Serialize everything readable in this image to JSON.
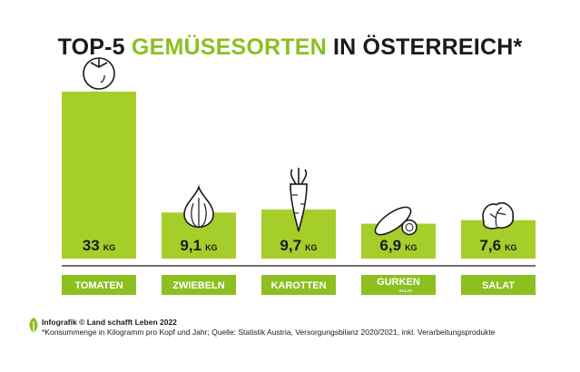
{
  "title": {
    "part1": "TOP-5",
    "part2": "GEMÜSESORTEN",
    "part3": "IN ÖSTERREICH*"
  },
  "colors": {
    "bar": "#a6ce2b",
    "label_bg": "#8cbf1f",
    "text_dark": "#1a1a1a",
    "label_text": "#ffffff"
  },
  "chart_data": {
    "type": "bar",
    "categories": [
      "TOMATEN",
      "ZWIEBELN",
      "KAROTTEN",
      "GURKEN",
      "SALAT"
    ],
    "category_sublabels": [
      "",
      "",
      "",
      "SALAT",
      ""
    ],
    "values": [
      33,
      9.1,
      9.7,
      6.9,
      7.6
    ],
    "value_labels": [
      "33",
      "9,1",
      "9,7",
      "6,9",
      "7,6"
    ],
    "unit": "KG",
    "icons": [
      "tomato-icon",
      "onion-icon",
      "carrot-icon",
      "cucumber-icon",
      "lettuce-icon"
    ],
    "ylim": [
      0,
      33
    ]
  },
  "footer": {
    "credit": "Infografik © Land schafft Leben 2022",
    "note": "*Konsummenge in Kilogramm pro Kopf und Jahr; Quelle: Statistik Austria, Versorgungsbilanz 2020/2021, inkl. Verarbeitungsprodukte"
  }
}
